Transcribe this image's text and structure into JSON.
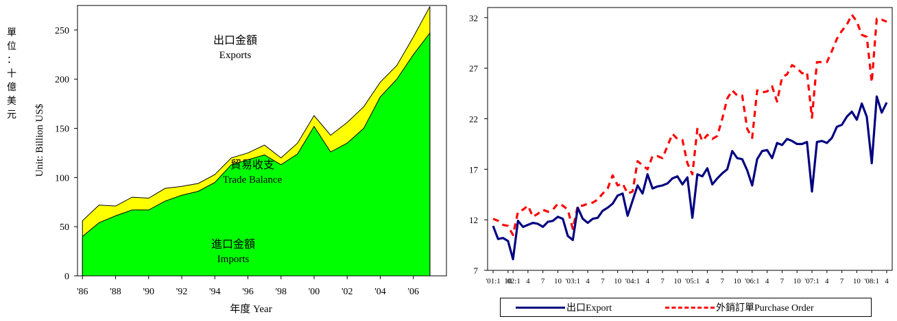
{
  "unit_vertical": [
    "單",
    "位",
    "：",
    "十",
    "億",
    "美",
    "元"
  ],
  "chart_data": [
    {
      "type": "area",
      "ylabel": "Unit: Billion US$",
      "xlabel": "年度 Year",
      "ylim": [
        0,
        275
      ],
      "yticks": [
        0,
        50,
        100,
        150,
        200,
        250
      ],
      "xlim": [
        1985.7,
        2008
      ],
      "x": [
        1986,
        1987,
        1988,
        1989,
        1990,
        1991,
        1992,
        1993,
        1994,
        1995,
        1996,
        1997,
        1998,
        1999,
        2000,
        2001,
        2002,
        2003,
        2004,
        2005,
        2006,
        2007
      ],
      "xticks": [
        1986,
        1988,
        1990,
        1992,
        1994,
        1996,
        1998,
        2000,
        2002,
        2004,
        2006
      ],
      "xtick_labels": [
        "'86",
        "'88",
        "'90",
        "'92",
        "'94",
        "'96",
        "'98",
        "'00",
        "'02",
        "'04",
        "'06"
      ],
      "series": [
        {
          "name": "Exports",
          "color": "#ffff00",
          "values": [
            56,
            72,
            71,
            80,
            79,
            89,
            91,
            94,
            103,
            120,
            125,
            133,
            120,
            135,
            163,
            143,
            156,
            172,
            197,
            214,
            243,
            274
          ]
        },
        {
          "name": "Imports",
          "color": "#00ff00",
          "values": [
            40,
            54,
            61,
            67,
            67,
            76,
            82,
            86,
            95,
            113,
            118,
            123,
            113,
            124,
            152,
            126,
            135,
            150,
            182,
            200,
            225,
            247
          ]
        }
      ],
      "annotations": [
        {
          "line1": "出口金額",
          "line2": "Exports"
        },
        {
          "line1": "貿易收支",
          "line2": "Trade Balance"
        },
        {
          "line1": "進口金額",
          "line2": "Imports"
        }
      ],
      "grid": false
    },
    {
      "type": "line",
      "ylim": [
        7,
        33
      ],
      "yticks": [
        7,
        12,
        17,
        22,
        27,
        32
      ],
      "xtick_labels": [
        {
          "i": 0,
          "label": "'01:1"
        },
        {
          "i": 3,
          "label": "10"
        },
        {
          "i": 4,
          "label": "'02:1"
        },
        {
          "i": 7,
          "label": "4"
        },
        {
          "i": 10,
          "label": "7"
        },
        {
          "i": 13,
          "label": "10"
        },
        {
          "i": 16,
          "label": "'03:1"
        },
        {
          "i": 19,
          "label": "4"
        },
        {
          "i": 22,
          "label": "7"
        },
        {
          "i": 25,
          "label": "10"
        },
        {
          "i": 28,
          "label": "'04:1"
        },
        {
          "i": 31,
          "label": "4"
        },
        {
          "i": 34,
          "label": "7"
        },
        {
          "i": 37,
          "label": "10"
        },
        {
          "i": 40,
          "label": "'05:1"
        },
        {
          "i": 43,
          "label": "4"
        },
        {
          "i": 46,
          "label": "7"
        },
        {
          "i": 49,
          "label": "10"
        },
        {
          "i": 52,
          "label": "'06:1"
        },
        {
          "i": 55,
          "label": "4"
        },
        {
          "i": 58,
          "label": "7"
        },
        {
          "i": 61,
          "label": "10"
        },
        {
          "i": 64,
          "label": "'07:1"
        },
        {
          "i": 67,
          "label": "4"
        },
        {
          "i": 70,
          "label": "7"
        },
        {
          "i": 73,
          "label": "10"
        },
        {
          "i": 76,
          "label": "'08:1"
        },
        {
          "i": 79,
          "label": "4"
        }
      ],
      "series": [
        {
          "name": "出口Export",
          "color": "#000080",
          "style": "solid",
          "values": [
            11.4,
            10.1,
            10.2,
            9.9,
            8.1,
            11.9,
            11.3,
            11.5,
            11.7,
            11.6,
            11.3,
            11.8,
            11.9,
            12.3,
            12.1,
            10.4,
            10.0,
            13.2,
            12.1,
            11.7,
            12.1,
            12.2,
            12.9,
            13.2,
            13.6,
            14.4,
            14.6,
            12.4,
            13.9,
            15.4,
            14.6,
            16.5,
            15.1,
            15.3,
            15.4,
            15.6,
            16.1,
            16.3,
            15.5,
            16.2,
            12.2,
            16.5,
            16.3,
            17.1,
            15.5,
            16.1,
            16.6,
            17.0,
            18.8,
            18.1,
            18.0,
            16.9,
            15.4,
            18.0,
            18.8,
            18.9,
            18.1,
            19.6,
            19.4,
            20.0,
            19.8,
            19.5,
            19.5,
            19.7,
            14.8,
            19.7,
            19.8,
            19.6,
            20.1,
            21.2,
            21.4,
            22.2,
            22.7,
            21.9,
            23.5,
            22.2,
            17.6,
            24.2,
            22.6,
            23.6
          ]
        },
        {
          "name": "外銷訂單Purchase Order",
          "color": "#ff0000",
          "style": "dashed",
          "values": [
            12.1,
            11.9,
            11.5,
            11.4,
            10.5,
            12.8,
            13.0,
            13.4,
            12.3,
            12.6,
            13.0,
            12.8,
            13.0,
            13.6,
            13.4,
            13.0,
            11.1,
            13.4,
            13.4,
            13.6,
            13.7,
            14.0,
            14.6,
            15.1,
            16.4,
            15.4,
            15.6,
            14.6,
            14.8,
            17.8,
            17.4,
            17.0,
            18.3,
            18.3,
            18.1,
            19.3,
            20.5,
            20.0,
            19.9,
            17.6,
            16.5,
            21.0,
            19.8,
            20.4,
            20.0,
            20.3,
            22.0,
            24.0,
            24.8,
            24.3,
            24.3,
            21.0,
            20.1,
            24.8,
            24.6,
            24.7,
            25.2,
            23.7,
            26.1,
            26.4,
            27.3,
            27.0,
            26.5,
            26.6,
            22.1,
            27.6,
            27.6,
            27.6,
            28.7,
            29.9,
            30.7,
            31.3,
            32.3,
            31.6,
            30.3,
            30.1,
            25.6,
            31.9,
            31.8,
            31.6
          ]
        }
      ],
      "legend": "bottom",
      "grid": false
    }
  ]
}
